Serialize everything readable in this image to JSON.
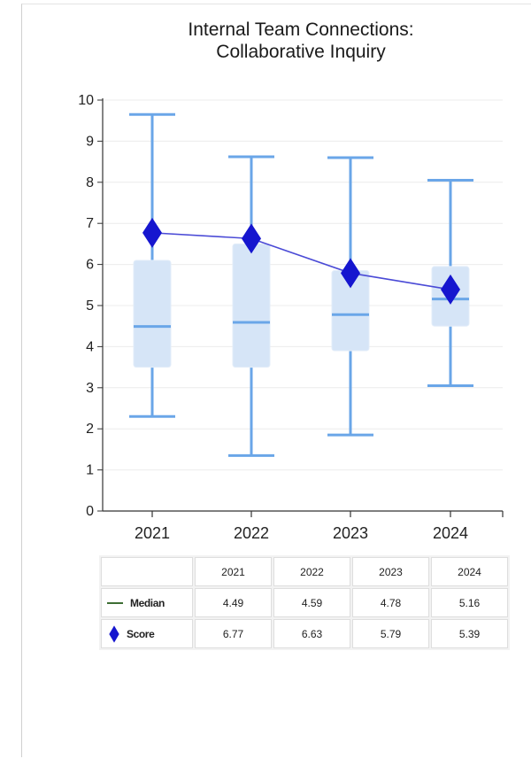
{
  "chart_data": {
    "type": "box",
    "title": [
      "Internal Team Connections:",
      "Collaborative Inquiry"
    ],
    "categories": [
      "2021",
      "2022",
      "2023",
      "2024"
    ],
    "ylim": [
      0,
      10
    ],
    "yticks": [
      "0",
      "1",
      "2",
      "3",
      "4",
      "5",
      "6",
      "7",
      "8",
      "9",
      "10"
    ],
    "grid": true,
    "boxes": [
      {
        "category": "2021",
        "min": 2.3,
        "q1": 3.5,
        "median": 4.49,
        "q3": 6.1,
        "max": 9.65
      },
      {
        "category": "2022",
        "min": 1.35,
        "q1": 3.5,
        "median": 4.59,
        "q3": 6.5,
        "max": 8.62
      },
      {
        "category": "2023",
        "min": 1.85,
        "q1": 3.9,
        "median": 4.78,
        "q3": 5.85,
        "max": 8.6
      },
      {
        "category": "2024",
        "min": 3.05,
        "q1": 4.5,
        "median": 5.16,
        "q3": 5.95,
        "max": 8.05
      }
    ],
    "series": [
      {
        "name": "Median",
        "values": [
          4.49,
          4.59,
          4.78,
          5.16
        ]
      },
      {
        "name": "Score",
        "values": [
          6.77,
          6.63,
          5.79,
          5.39
        ]
      }
    ],
    "colors": {
      "box_fill": "#d6e5f7",
      "whisker": "#6aa6e8",
      "score": "#1616cf",
      "score_line": "#4a4ad6",
      "grid": "#ececec",
      "median_legend": "#3e6e34"
    }
  },
  "table": {
    "headers": [
      "2021",
      "2022",
      "2023",
      "2024"
    ],
    "rows": [
      {
        "label": "Median",
        "values": [
          "4.49",
          "4.59",
          "4.78",
          "5.16"
        ]
      },
      {
        "label": "Score",
        "values": [
          "6.77",
          "6.63",
          "5.79",
          "5.39"
        ]
      }
    ]
  }
}
